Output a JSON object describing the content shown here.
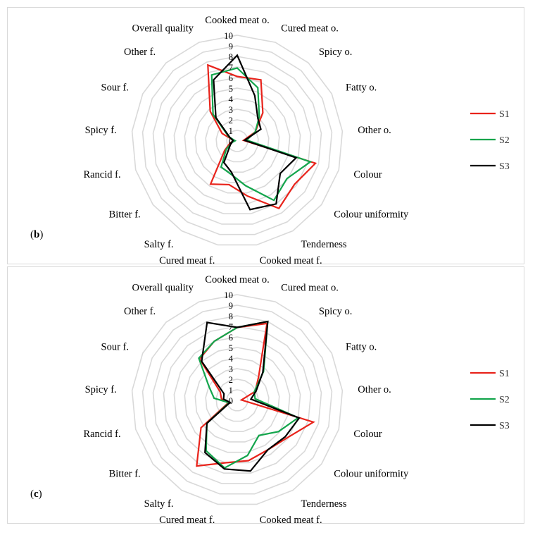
{
  "chart_data": [
    {
      "type": "radar",
      "panel_label": "b",
      "axes": [
        "Cooked meat o.",
        "Cured meat o.",
        "Spicy o.",
        "Fatty o.",
        "Other o.",
        "Colour",
        "Colour uniformity",
        "Tenderness",
        "Cooked meat f.",
        "Cured meat f.",
        "Salty f.",
        "Bitter f.",
        "Rancid f.",
        "Spicy f.",
        "Sour f.",
        "Other f.",
        "Overall quality"
      ],
      "rlim": [
        0,
        10
      ],
      "ticks": [
        "0",
        "1",
        "2",
        "3",
        "4",
        "5",
        "6",
        "7",
        "8",
        "9",
        "10"
      ],
      "grid": true,
      "legend_position": "right",
      "series": [
        {
          "name": "S1",
          "color": "#e8231b",
          "values": [
            6.1,
            6.2,
            3.6,
            1.9,
            0.6,
            7.7,
            6.8,
            7.5,
            5.3,
            4.2,
            4.8,
            1.5,
            0.7,
            0.3,
            1.6,
            3.8,
            7.7
          ]
        },
        {
          "name": "S2",
          "color": "#13a54c",
          "values": [
            6.9,
            5.4,
            3.1,
            1.9,
            0.9,
            7.2,
            5.9,
            6.6,
            4.3,
            3.2,
            2.9,
            1.3,
            0.5,
            0.2,
            0.9,
            3.4,
            6.7
          ]
        },
        {
          "name": "S3",
          "color": "#000000",
          "values": [
            8.1,
            4.6,
            2.9,
            2.5,
            0.7,
            5.8,
            5.1,
            7.0,
            6.6,
            3.0,
            2.4,
            0.9,
            0.6,
            0.4,
            0.8,
            3.0,
            6.2
          ]
        }
      ]
    },
    {
      "type": "radar",
      "panel_label": "c",
      "axes": [
        "Cooked meat o.",
        "Cured meat o.",
        "Spicy o.",
        "Fatty o.",
        "Other o.",
        "Colour",
        "Colour uniformity",
        "Tenderness",
        "Cooked meat f.",
        "Cured meat f.",
        "Salty f.",
        "Bitter f.",
        "Rancid f.",
        "Spicy f.",
        "Sour f.",
        "Other f.",
        "Overall quality"
      ],
      "rlim": [
        0,
        10
      ],
      "ticks": [
        "0",
        "1",
        "2",
        "3",
        "4",
        "5",
        "6",
        "7",
        "8",
        "9",
        "10"
      ],
      "grid": true,
      "legend_position": "right",
      "series": [
        {
          "name": "S1",
          "color": "#e8231b",
          "values": [
            6.9,
            7.8,
            3.0,
            1.9,
            0.4,
            7.5,
            5.9,
            5.5,
            5.8,
            6.0,
            7.3,
            4.3,
            0.9,
            1.5,
            1.8,
            5.3,
            6.0
          ]
        },
        {
          "name": "S2",
          "color": "#13a54c",
          "values": [
            6.9,
            8.0,
            3.7,
            1.8,
            1.7,
            6.0,
            4.9,
            3.9,
            5.3,
            6.5,
            5.6,
            3.6,
            0.8,
            2.2,
            3.0,
            5.4,
            6.0
          ]
        },
        {
          "name": "S3",
          "color": "#000000",
          "values": [
            6.9,
            8.0,
            3.6,
            2.0,
            1.3,
            6.1,
            5.7,
            5.5,
            6.8,
            6.6,
            5.8,
            3.6,
            0.7,
            1.3,
            1.4,
            5.0,
            7.9
          ]
        }
      ]
    }
  ]
}
